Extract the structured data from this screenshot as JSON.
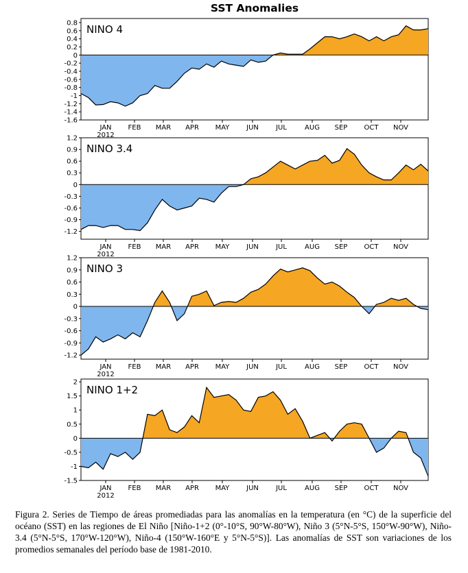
{
  "title": "SST Anomalies",
  "caption": "Figura 2. Series de Tiempo de áreas promediadas para las anomalías en la temperatura (en °C) de la superficie del océano (SST) en las regiones de El Niño [Niño-1+2 (0°-10°S, 90°W-80°W), Niño 3 (5°N-5°S, 150°W-90°W), Niño-3.4 (5°N-5°S, 170°W-120°W), Niño-4 (150°W-160°E y 5°N-5°S)]. Las anomalías de SST son variaciones de los promedios semanales del período base de 1981-2010.",
  "colors": {
    "positive": "#f5a623",
    "negative": "#7fb6ee",
    "line": "#000000"
  },
  "x_ticks": [
    "JAN",
    "FEB",
    "MAR",
    "APR",
    "MAY",
    "JUN",
    "JUL",
    "AUG",
    "SEP",
    "OCT",
    "NOV"
  ],
  "year_label": "2012",
  "chart_data": [
    {
      "type": "area",
      "label": "NINO 4",
      "ylim": [
        -1.6,
        0.9
      ],
      "yticks": [
        0.8,
        0.6,
        0.4,
        0.2,
        0,
        -0.2,
        -0.4,
        -0.6,
        -0.8,
        -1,
        -1.2,
        -1.4,
        -1.6
      ],
      "ytick_labels": [
        "0.8",
        "0.6",
        "0.4",
        "0.2",
        "0",
        "-0.2",
        "-0.4",
        "-0.6",
        "-0.8",
        "-1",
        "-1.2",
        "-1.4",
        "-1.6"
      ],
      "x_weeks": [
        0,
        1,
        2,
        3,
        4,
        5,
        6,
        7,
        8,
        9,
        10,
        11,
        12,
        13,
        14,
        15,
        16,
        17,
        18,
        19,
        20,
        21,
        22,
        23,
        24,
        25,
        26,
        27,
        28,
        29,
        30,
        31,
        32,
        33,
        34,
        35,
        36,
        37,
        38,
        39,
        40,
        41,
        42,
        43,
        44,
        45,
        46,
        47
      ],
      "values": [
        -0.95,
        -1.05,
        -1.23,
        -1.22,
        -1.15,
        -1.18,
        -1.26,
        -1.18,
        -1.0,
        -0.95,
        -0.75,
        -0.82,
        -0.82,
        -0.65,
        -0.45,
        -0.32,
        -0.35,
        -0.22,
        -0.3,
        -0.15,
        -0.22,
        -0.25,
        -0.28,
        -0.12,
        -0.18,
        -0.15,
        0.0,
        0.05,
        0.02,
        0.02,
        0.02,
        0.15,
        0.3,
        0.45,
        0.45,
        0.4,
        0.45,
        0.52,
        0.45,
        0.35,
        0.45,
        0.35,
        0.45,
        0.5,
        0.72,
        0.62,
        0.62,
        0.65
      ]
    },
    {
      "type": "area",
      "label": "NINO 3.4",
      "ylim": [
        -1.4,
        1.2
      ],
      "yticks": [
        1.2,
        0.9,
        0.6,
        0.3,
        0,
        -0.3,
        -0.6,
        -0.9,
        -1.2
      ],
      "ytick_labels": [
        "1.2",
        "0.9",
        "0.6",
        "0.3",
        "0",
        "-0.3",
        "-0.6",
        "-0.9",
        "-1.2"
      ],
      "x_weeks": [
        0,
        1,
        2,
        3,
        4,
        5,
        6,
        7,
        8,
        9,
        10,
        11,
        12,
        13,
        14,
        15,
        16,
        17,
        18,
        19,
        20,
        21,
        22,
        23,
        24,
        25,
        26,
        27,
        28,
        29,
        30,
        31,
        32,
        33,
        34,
        35,
        36,
        37,
        38,
        39,
        40,
        41,
        42,
        43,
        44,
        45,
        46,
        47
      ],
      "values": [
        -1.15,
        -1.05,
        -1.05,
        -1.1,
        -1.05,
        -1.05,
        -1.15,
        -1.15,
        -1.18,
        -0.98,
        -0.65,
        -0.38,
        -0.55,
        -0.65,
        -0.6,
        -0.55,
        -0.35,
        -0.38,
        -0.45,
        -0.22,
        -0.05,
        -0.05,
        0.0,
        0.15,
        0.2,
        0.3,
        0.45,
        0.6,
        0.5,
        0.4,
        0.5,
        0.6,
        0.62,
        0.75,
        0.55,
        0.62,
        0.92,
        0.78,
        0.5,
        0.3,
        0.2,
        0.12,
        0.12,
        0.3,
        0.5,
        0.38,
        0.52,
        0.35
      ]
    },
    {
      "type": "area",
      "label": "NINO 3",
      "ylim": [
        -1.3,
        1.2
      ],
      "yticks": [
        1.2,
        0.9,
        0.6,
        0.3,
        0,
        -0.3,
        -0.6,
        -0.9,
        -1.2
      ],
      "ytick_labels": [
        "1.2",
        "0.9",
        "0.6",
        "0.3",
        "0",
        "-0.3",
        "-0.6",
        "-0.9",
        "-1.2"
      ],
      "x_weeks": [
        0,
        1,
        2,
        3,
        4,
        5,
        6,
        7,
        8,
        9,
        10,
        11,
        12,
        13,
        14,
        15,
        16,
        17,
        18,
        19,
        20,
        21,
        22,
        23,
        24,
        25,
        26,
        27,
        28,
        29,
        30,
        31,
        32,
        33,
        34,
        35,
        36,
        37,
        38,
        39,
        40,
        41,
        42,
        43,
        44,
        45,
        46,
        47
      ],
      "values": [
        -1.2,
        -1.05,
        -0.75,
        -0.88,
        -0.8,
        -0.7,
        -0.8,
        -0.65,
        -0.75,
        -0.35,
        0.1,
        0.38,
        0.1,
        -0.35,
        -0.18,
        0.25,
        0.3,
        0.38,
        0.02,
        0.1,
        0.12,
        0.1,
        0.2,
        0.35,
        0.42,
        0.55,
        0.75,
        0.92,
        0.85,
        0.9,
        0.95,
        0.88,
        0.7,
        0.55,
        0.6,
        0.5,
        0.35,
        0.22,
        0.0,
        -0.18,
        0.05,
        0.1,
        0.2,
        0.15,
        0.2,
        0.05,
        -0.05,
        -0.08
      ]
    },
    {
      "type": "area",
      "label": "NINO 1+2",
      "ylim": [
        -1.5,
        2.1
      ],
      "yticks": [
        2,
        1.5,
        1,
        0.5,
        0,
        -0.5,
        -1,
        -1.5
      ],
      "ytick_labels": [
        "2",
        "1.5",
        "1",
        "0.5",
        "0",
        "-0.5",
        "-1",
        "-1.5"
      ],
      "x_weeks": [
        0,
        1,
        2,
        3,
        4,
        5,
        6,
        7,
        8,
        9,
        10,
        11,
        12,
        13,
        14,
        15,
        16,
        17,
        18,
        19,
        20,
        21,
        22,
        23,
        24,
        25,
        26,
        27,
        28,
        29,
        30,
        31,
        32,
        33,
        34,
        35,
        36,
        37,
        38,
        39,
        40,
        41,
        42,
        43,
        44,
        45,
        46,
        47
      ],
      "values": [
        -1.0,
        -1.05,
        -0.85,
        -1.1,
        -0.55,
        -0.65,
        -0.5,
        -0.75,
        -0.5,
        0.85,
        0.8,
        1.0,
        0.3,
        0.2,
        0.4,
        0.8,
        0.55,
        1.8,
        1.45,
        1.5,
        1.55,
        1.35,
        1.0,
        0.95,
        1.45,
        1.5,
        1.65,
        1.35,
        0.85,
        1.05,
        0.6,
        0.0,
        0.1,
        0.2,
        -0.1,
        0.25,
        0.5,
        0.55,
        0.5,
        0.0,
        -0.5,
        -0.35,
        0.0,
        0.25,
        0.2,
        -0.5,
        -0.7,
        -1.35
      ]
    }
  ]
}
